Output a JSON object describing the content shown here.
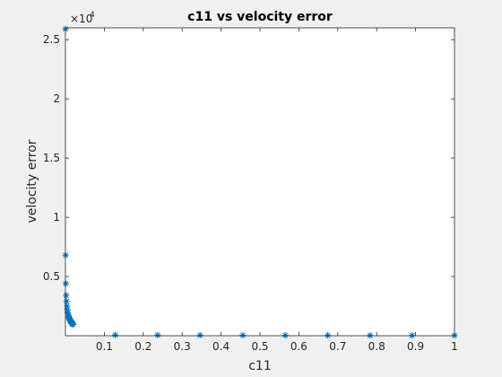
{
  "chart_data": {
    "type": "scatter",
    "title": "c11 vs velocity error",
    "xlabel": "c11",
    "ylabel": "velocity error",
    "xlim": [
      0,
      1
    ],
    "ylim": [
      0,
      26000
    ],
    "y_exponent_base": "×10",
    "y_exponent_power": "4",
    "x_ticks": [
      0.1,
      0.2,
      0.3,
      0.4,
      0.5,
      0.6,
      0.7,
      0.8,
      0.9,
      1
    ],
    "x_tick_labels": [
      "0.1",
      "0.2",
      "0.3",
      "0.4",
      "0.5",
      "0.6",
      "0.7",
      "0.8",
      "0.9",
      "1"
    ],
    "y_ticks": [
      5000,
      10000,
      15000,
      20000,
      25000
    ],
    "y_tick_labels": [
      "0.5",
      "1",
      "1.5",
      "2",
      "2.5"
    ],
    "grid": false,
    "marker": "asterisk",
    "series": [
      {
        "color": "#0072bd",
        "x": [
          0.0001,
          0.0005,
          0.001,
          0.002,
          0.003,
          0.004,
          0.005,
          0.006,
          0.007,
          0.008,
          0.009,
          0.01,
          0.011,
          0.012,
          0.013,
          0.014,
          0.015,
          0.016,
          0.017,
          0.018,
          0.019,
          0.02,
          0.128,
          0.237,
          0.346,
          0.456,
          0.565,
          0.674,
          0.783,
          0.891,
          1.0
        ],
        "y": [
          25900,
          6800,
          4400,
          3400,
          2900,
          2500,
          2200,
          1950,
          1800,
          1650,
          1550,
          1450,
          1380,
          1300,
          1250,
          1200,
          1150,
          1100,
          1050,
          1000,
          980,
          950,
          60,
          50,
          45,
          40,
          35,
          30,
          28,
          26,
          25
        ]
      }
    ]
  }
}
